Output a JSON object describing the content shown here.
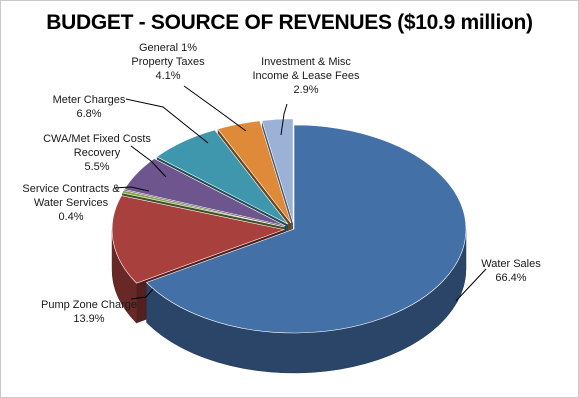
{
  "chart_data": {
    "type": "pie",
    "title": "BUDGET - SOURCE OF REVENUES ($10.9 million)",
    "three_d": true,
    "legend": "none",
    "labels_style": "callout labels with category name and percentage",
    "slices": [
      {
        "name_lines": [
          "Water Sales"
        ],
        "label": "Water Sales",
        "value": 66.4,
        "value_text": "66.4%",
        "color": "#4470A8"
      },
      {
        "name_lines": [
          "Pump Zone Charge"
        ],
        "label": "Pump Zone Charge",
        "value": 13.9,
        "value_text": "13.9%",
        "color": "#A8403D"
      },
      {
        "name_lines": [
          "Service Contracts &",
          "Water Services"
        ],
        "label": "Service Contracts & Water Services",
        "value": 0.4,
        "value_text": "0.4%",
        "color": "#87A14E"
      },
      {
        "name_lines": [
          "CWA/Met Fixed Costs",
          "Recovery"
        ],
        "label": "CWA/Met Fixed Costs Recovery",
        "value": 5.5,
        "value_text": "5.5%",
        "color": "#6F558D"
      },
      {
        "name_lines": [
          "Meter Charges"
        ],
        "label": "Meter Charges",
        "value": 6.8,
        "value_text": "6.8%",
        "color": "#3F97AE"
      },
      {
        "name_lines": [
          "General 1%",
          "Property Taxes"
        ],
        "label": "General 1% Property Taxes",
        "value": 4.1,
        "value_text": "4.1%",
        "color": "#DE8A38"
      },
      {
        "name_lines": [
          "Investment & Misc",
          "Income & Lease Fees"
        ],
        "label": "Investment & Misc Income & Lease Fees",
        "value": 2.9,
        "value_text": "2.9%",
        "color": "#9BB1D6"
      }
    ]
  }
}
